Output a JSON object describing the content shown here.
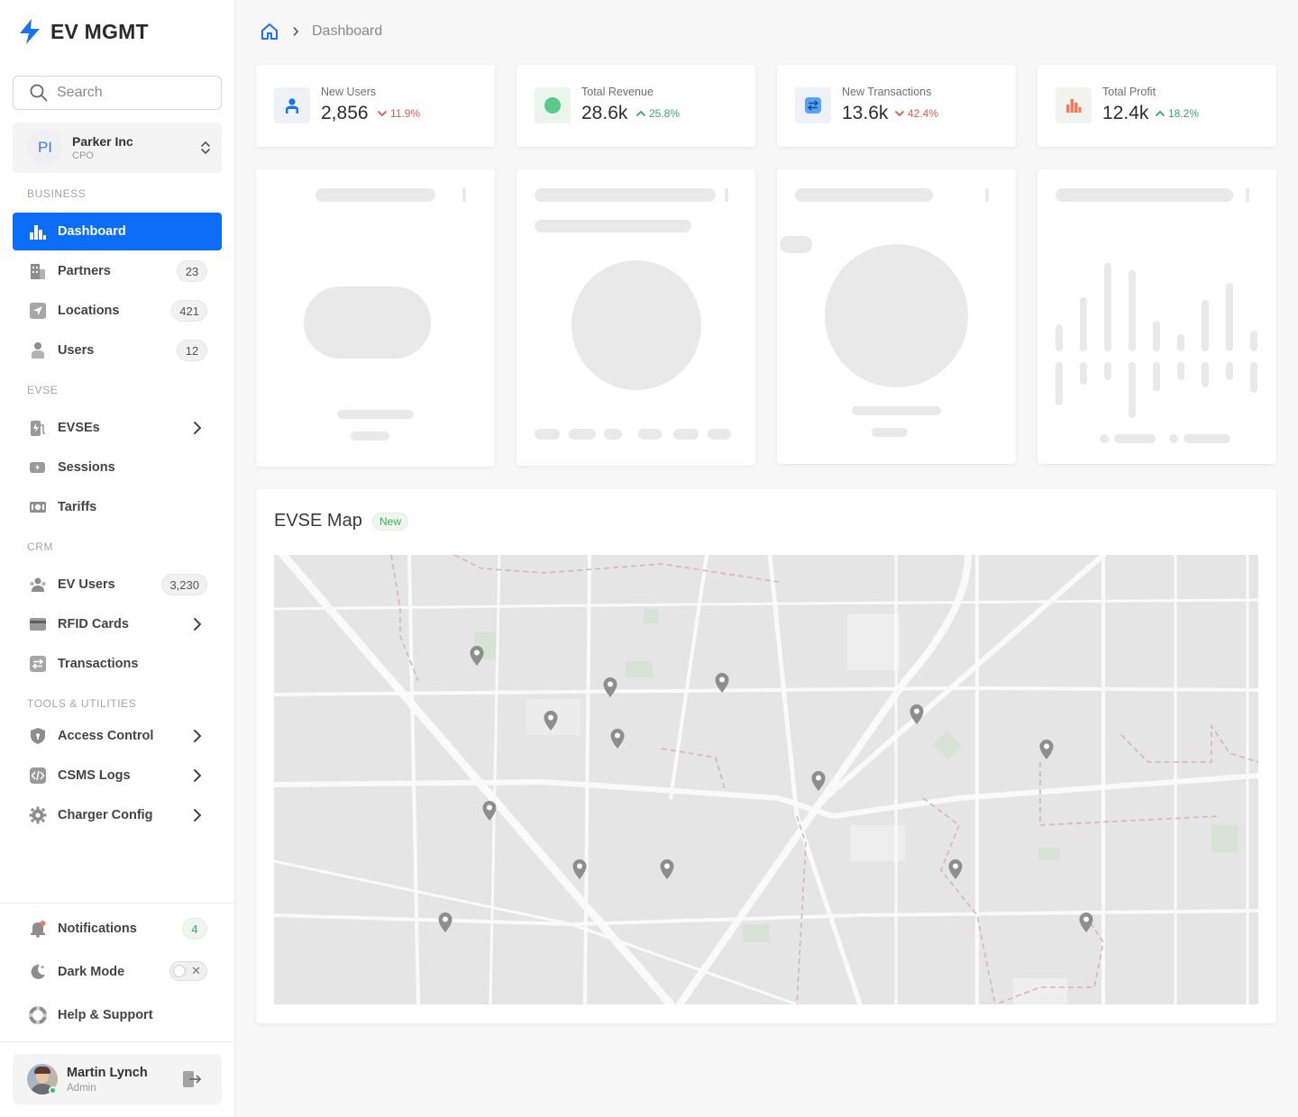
{
  "brand": {
    "name": "EV MGMT"
  },
  "search": {
    "placeholder": "Search"
  },
  "org": {
    "initials": "PI",
    "name": "Parker Inc",
    "role": "CPO"
  },
  "sections": {
    "business": "BUSINESS",
    "evse": "EVSE",
    "crm": "CRM",
    "tools": "TOOLS & UTILITIES"
  },
  "nav": {
    "dashboard": "Dashboard",
    "partners": {
      "label": "Partners",
      "count": "23"
    },
    "locations": {
      "label": "Locations",
      "count": "421"
    },
    "users": {
      "label": "Users",
      "count": "12"
    },
    "evses": "EVSEs",
    "sessions": "Sessions",
    "tariffs": "Tariffs",
    "ev_users": {
      "label": "EV Users",
      "count": "3,230"
    },
    "rfid": "RFID Cards",
    "transactions": "Transactions",
    "access": "Access Control",
    "csms": "CSMS Logs",
    "charger": "Charger Config"
  },
  "footer": {
    "notifications": {
      "label": "Notifications",
      "count": "4"
    },
    "dark_mode": {
      "label": "Dark Mode",
      "enabled": false
    },
    "help": "Help & Support"
  },
  "user": {
    "name": "Martin Lynch",
    "role": "Admin"
  },
  "breadcrumb": {
    "current": "Dashboard"
  },
  "stats": [
    {
      "label": "New Users",
      "value": "2,856",
      "trend": "11.9%",
      "direction": "down",
      "icon": "user-icon"
    },
    {
      "label": "Total Revenue",
      "value": "28.6k",
      "trend": "25.8%",
      "direction": "up",
      "icon": "revenue-icon"
    },
    {
      "label": "New Transactions",
      "value": "13.6k",
      "trend": "42.4%",
      "direction": "down",
      "icon": "swap-icon"
    },
    {
      "label": "Total Profit",
      "value": "12.4k",
      "trend": "18.2%",
      "direction": "up",
      "icon": "bar-chart-icon"
    }
  ],
  "map": {
    "title": "EVSE Map",
    "badge": "New"
  },
  "colors": {
    "accent": "#0b6df8",
    "up": "#35a866",
    "down": "#e05d4a"
  }
}
